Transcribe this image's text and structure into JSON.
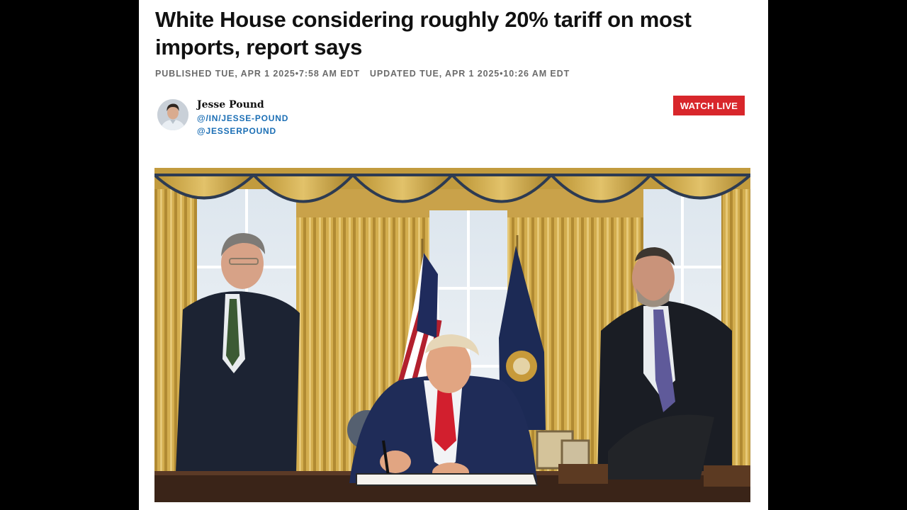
{
  "article": {
    "headline": "White House considering roughly 20% tariff on most imports, report says",
    "published": "PUBLISHED TUE, APR 1 2025•7:58 AM EDT",
    "updated": "UPDATED TUE, APR 1 2025•10:26 AM EDT"
  },
  "author": {
    "name": "Jesse Pound",
    "linkedin": "@/IN/JESSE-POUND",
    "twitter": "@JESSERPOUND"
  },
  "actions": {
    "watch_live": "WATCH LIVE"
  },
  "colors": {
    "accent_red": "#d8262b",
    "link_blue": "#1c6fb5",
    "meta_gray": "#6b6b6b",
    "page_background": "#000000"
  }
}
